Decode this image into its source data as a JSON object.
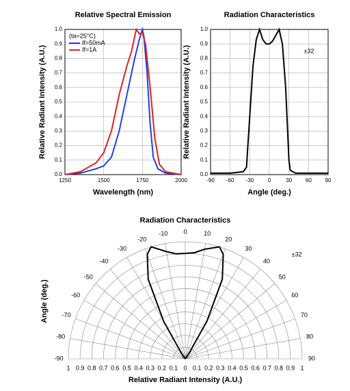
{
  "chart_data": [
    {
      "type": "line",
      "title": "Relative Spectral Emission",
      "xlabel": "Wavelength (nm)",
      "ylabel": "Relative Radiant Intensity (A.U.)",
      "annotation": "(ta=25°C)",
      "xlim": [
        1250,
        2000
      ],
      "xticks": [
        1250,
        1500,
        1750,
        2000
      ],
      "ylim": [
        0,
        1
      ],
      "yticks": [
        {
          "value": 0,
          "label": "0.0"
        },
        0.1,
        0.2,
        0.3,
        0.4,
        0.5,
        0.6,
        0.7,
        0.8,
        0.9,
        {
          "value": 1,
          "label": "1.0"
        }
      ],
      "grid": true,
      "series": [
        {
          "name": "If=50mA",
          "color": "#1f3fe0",
          "x": [
            1250,
            1350,
            1450,
            1500,
            1550,
            1600,
            1650,
            1700,
            1730,
            1750,
            1760,
            1780,
            1800,
            1820,
            1850,
            1900,
            2000
          ],
          "values": [
            0,
            0.01,
            0.04,
            0.06,
            0.12,
            0.3,
            0.55,
            0.8,
            0.93,
            1.0,
            0.95,
            0.7,
            0.35,
            0.12,
            0.04,
            0.01,
            0
          ]
        },
        {
          "name": "If=1A",
          "color": "#e02020",
          "x": [
            1250,
            1350,
            1400,
            1450,
            1500,
            1550,
            1600,
            1650,
            1680,
            1710,
            1730,
            1750,
            1770,
            1800,
            1830,
            1860,
            1900,
            2000
          ],
          "values": [
            0,
            0.02,
            0.05,
            0.08,
            0.15,
            0.3,
            0.55,
            0.75,
            0.85,
            1.0,
            0.97,
            0.98,
            0.9,
            0.6,
            0.25,
            0.07,
            0.02,
            0
          ]
        }
      ]
    },
    {
      "type": "line",
      "title": "Radiation Characteristics",
      "xlabel": "Angle (deg.)",
      "ylabel": "Relative Radiant Intensity (A.U.)",
      "annotation": "±32",
      "xlim": [
        -90,
        90
      ],
      "xticks": [
        -90,
        -60,
        -30,
        0,
        30,
        60,
        90
      ],
      "ylim": [
        0,
        1
      ],
      "yticks": [
        {
          "value": 0,
          "label": "0.0"
        },
        0.1,
        0.2,
        0.3,
        0.4,
        0.5,
        0.6,
        0.7,
        0.8,
        0.9,
        {
          "value": 1,
          "label": "1.0"
        }
      ],
      "grid": true,
      "color": "#000000",
      "x": [
        -90,
        -60,
        -40,
        -35,
        -30,
        -25,
        -20,
        -15,
        -10,
        -5,
        0,
        5,
        10,
        15,
        20,
        25,
        30,
        32,
        40,
        90
      ],
      "values": [
        0.01,
        0.01,
        0.02,
        0.05,
        0.4,
        0.75,
        0.93,
        1.0,
        0.93,
        0.9,
        0.9,
        0.92,
        0.96,
        1.0,
        0.9,
        0.6,
        0.1,
        0.03,
        0.01,
        0.01
      ]
    },
    {
      "type": "polar",
      "title": "Radiation Characteristics",
      "xlabel": "Relative Radiant Intensity (A.U.)",
      "ylabel": "Angle (deg.)",
      "annotation": "±32",
      "color": "#000000",
      "rlim": [
        0,
        1
      ],
      "rticks": [
        0,
        0.1,
        0.2,
        0.3,
        0.4,
        0.5,
        0.6,
        0.7,
        0.8,
        0.9,
        1
      ],
      "thetaticks": [
        -90,
        -80,
        -70,
        -60,
        -50,
        -40,
        -30,
        -20,
        -10,
        0,
        10,
        20,
        30,
        40,
        50,
        60,
        70,
        80,
        90
      ],
      "theta": [
        -40,
        -35,
        -30,
        -25,
        -20,
        -17,
        -10,
        -5,
        0,
        5,
        10,
        17,
        20,
        25,
        30,
        35,
        40
      ],
      "r": [
        0,
        0.05,
        0.37,
        0.75,
        0.95,
        1.0,
        0.93,
        0.9,
        0.9,
        0.91,
        0.95,
        1.0,
        0.95,
        0.75,
        0.37,
        0.05,
        0
      ]
    }
  ]
}
